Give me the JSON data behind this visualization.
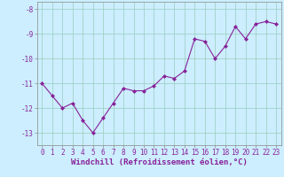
{
  "x": [
    0,
    1,
    2,
    3,
    4,
    5,
    6,
    7,
    8,
    9,
    10,
    11,
    12,
    13,
    14,
    15,
    16,
    17,
    18,
    19,
    20,
    21,
    22,
    23
  ],
  "y": [
    -11.0,
    -11.5,
    -12.0,
    -11.8,
    -12.5,
    -13.0,
    -12.4,
    -11.8,
    -11.2,
    -11.3,
    -11.3,
    -11.1,
    -10.7,
    -10.8,
    -10.5,
    -9.2,
    -9.3,
    -10.0,
    -9.5,
    -8.7,
    -9.2,
    -8.6,
    -8.5,
    -8.6
  ],
  "line_color": "#882299",
  "marker": "D",
  "marker_size": 2.0,
  "bg_color": "#cceeff",
  "grid_color": "#99ccbb",
  "xlabel": "Windchill (Refroidissement éolien,°C)",
  "xlabel_fontsize": 6.5,
  "tick_fontsize": 5.5,
  "ylim": [
    -13.5,
    -7.7
  ],
  "xlim": [
    -0.5,
    23.5
  ],
  "yticks": [
    -13,
    -12,
    -11,
    -10,
    -9,
    -8
  ],
  "xticks": [
    0,
    1,
    2,
    3,
    4,
    5,
    6,
    7,
    8,
    9,
    10,
    11,
    12,
    13,
    14,
    15,
    16,
    17,
    18,
    19,
    20,
    21,
    22,
    23
  ],
  "line_width": 0.8
}
